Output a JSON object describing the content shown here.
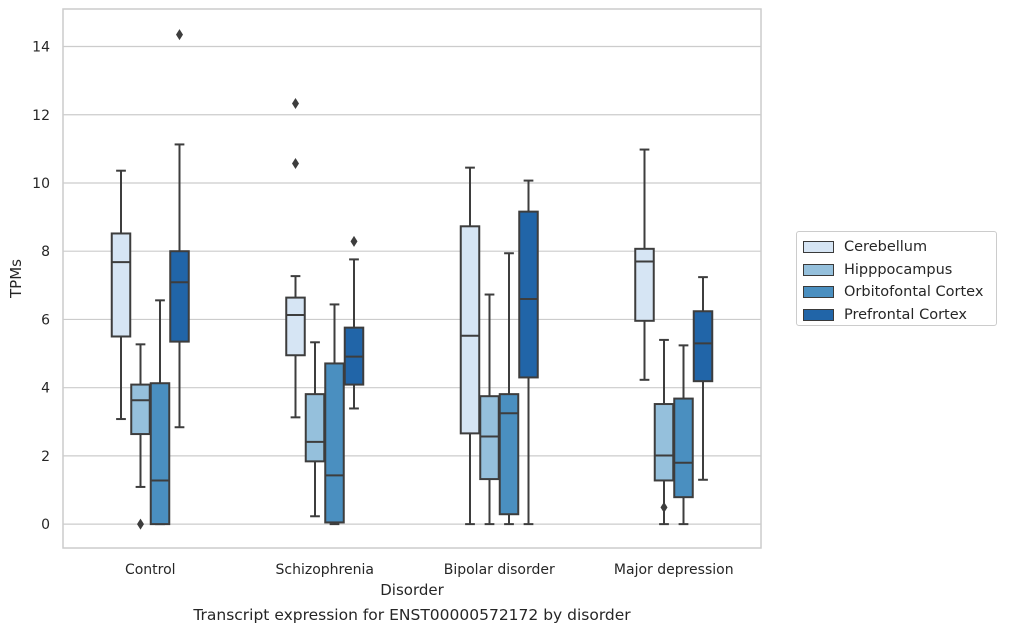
{
  "caption": "Transcript expression for ENST00000572172 by disorder",
  "chart_data": {
    "type": "box",
    "xlabel": "Disorder",
    "ylabel": "TPMs",
    "ylim": [
      -0.7,
      15.1
    ],
    "yticks": [
      0,
      2,
      4,
      6,
      8,
      10,
      12,
      14
    ],
    "grid": true,
    "legend_position": "right",
    "categories": [
      "Control",
      "Schizophrenia",
      "Bipolar disorder",
      "Major depression"
    ],
    "series": [
      {
        "name": "Cerebellum",
        "color": "#d6e5f4",
        "boxes": [
          {
            "whisker_low": 3.08,
            "q1": 5.5,
            "median": 7.68,
            "q3": 8.52,
            "whisker_high": 10.36,
            "outliers": []
          },
          {
            "whisker_low": 3.13,
            "q1": 4.95,
            "median": 6.13,
            "q3": 6.64,
            "whisker_high": 7.27,
            "outliers": [
              10.57,
              12.33
            ]
          },
          {
            "whisker_low": 0.0,
            "q1": 2.66,
            "median": 5.52,
            "q3": 8.73,
            "whisker_high": 10.45,
            "outliers": []
          },
          {
            "whisker_low": 4.23,
            "q1": 5.96,
            "median": 7.7,
            "q3": 8.07,
            "whisker_high": 10.98,
            "outliers": []
          }
        ]
      },
      {
        "name": "Hipppocampus",
        "color": "#95c0dc",
        "boxes": [
          {
            "whisker_low": 1.09,
            "q1": 2.64,
            "median": 3.63,
            "q3": 4.09,
            "whisker_high": 5.27,
            "outliers": [
              0.0
            ]
          },
          {
            "whisker_low": 0.23,
            "q1": 1.84,
            "median": 2.41,
            "q3": 3.81,
            "whisker_high": 5.33,
            "outliers": []
          },
          {
            "whisker_low": 0.0,
            "q1": 1.32,
            "median": 2.57,
            "q3": 3.75,
            "whisker_high": 6.73,
            "outliers": []
          },
          {
            "whisker_low": 0.0,
            "q1": 1.28,
            "median": 2.01,
            "q3": 3.52,
            "whisker_high": 5.4,
            "outliers": [
              0.49
            ]
          }
        ]
      },
      {
        "name": "Orbitofontal Cortex",
        "color": "#4a8fc0",
        "boxes": [
          {
            "whisker_low": 0.0,
            "q1": 0.0,
            "median": 1.28,
            "q3": 4.13,
            "whisker_high": 6.56,
            "outliers": []
          },
          {
            "whisker_low": 0.0,
            "q1": 0.05,
            "median": 1.43,
            "q3": 4.71,
            "whisker_high": 6.44,
            "outliers": []
          },
          {
            "whisker_low": 0.0,
            "q1": 0.29,
            "median": 3.25,
            "q3": 3.81,
            "whisker_high": 7.94,
            "outliers": []
          },
          {
            "whisker_low": 0.0,
            "q1": 0.79,
            "median": 1.8,
            "q3": 3.68,
            "whisker_high": 5.24,
            "outliers": []
          }
        ]
      },
      {
        "name": "Prefrontal Cortex",
        "color": "#2165a8",
        "boxes": [
          {
            "whisker_low": 2.84,
            "q1": 5.35,
            "median": 7.09,
            "q3": 8.0,
            "whisker_high": 11.13,
            "outliers": [
              14.35
            ]
          },
          {
            "whisker_low": 3.39,
            "q1": 4.09,
            "median": 4.91,
            "q3": 5.76,
            "whisker_high": 7.76,
            "outliers": [
              8.29
            ]
          },
          {
            "whisker_low": 0.0,
            "q1": 4.3,
            "median": 6.6,
            "q3": 9.16,
            "whisker_high": 10.07,
            "outliers": []
          },
          {
            "whisker_low": 1.3,
            "q1": 4.19,
            "median": 5.3,
            "q3": 6.24,
            "whisker_high": 7.24,
            "outliers": []
          }
        ]
      }
    ]
  }
}
